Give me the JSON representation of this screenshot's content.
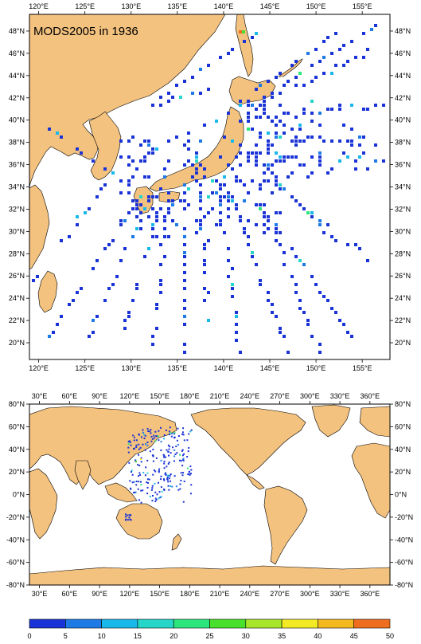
{
  "colors": {
    "land": "#f4c27f",
    "ocean": "#ffffff",
    "coast": "#000000",
    "palette": [
      "#1a33d6",
      "#1e7be6",
      "#19b8ea",
      "#26d6c8",
      "#2ce67d",
      "#48e02c",
      "#a7e62a",
      "#f2ea24",
      "#f5b920",
      "#ef6d1e"
    ]
  },
  "regional_map": {
    "title": "MODS2005 in 1936",
    "lon_ticks": [
      "120°E",
      "125°E",
      "130°E",
      "135°E",
      "140°E",
      "145°E",
      "150°E",
      "155°E"
    ],
    "lat_ticks": [
      "48°N",
      "46°N",
      "44°N",
      "42°N",
      "40°N",
      "38°N",
      "36°N",
      "34°N",
      "32°N",
      "30°N",
      "28°N",
      "26°N",
      "24°N",
      "22°N",
      "20°N"
    ],
    "lon_range": [
      119,
      158
    ],
    "lat_range": [
      18.5,
      49.5
    ]
  },
  "global_map": {
    "lon_ticks": [
      "30°E",
      "60°E",
      "90°E",
      "120°E",
      "150°E",
      "180°E",
      "210°E",
      "240°E",
      "270°E",
      "300°E",
      "330°E",
      "360°E"
    ],
    "lat_ticks": [
      "80°N",
      "60°N",
      "40°N",
      "20°N",
      "0°N",
      "-20°N",
      "-40°N",
      "-60°N",
      "-80°N"
    ],
    "lon_range": [
      20,
      380
    ],
    "lat_range": [
      -80,
      80
    ]
  },
  "colorbar": {
    "labels": [
      "0",
      "5",
      "10",
      "15",
      "20",
      "25",
      "30",
      "35",
      "40",
      "45",
      "50"
    ]
  }
}
